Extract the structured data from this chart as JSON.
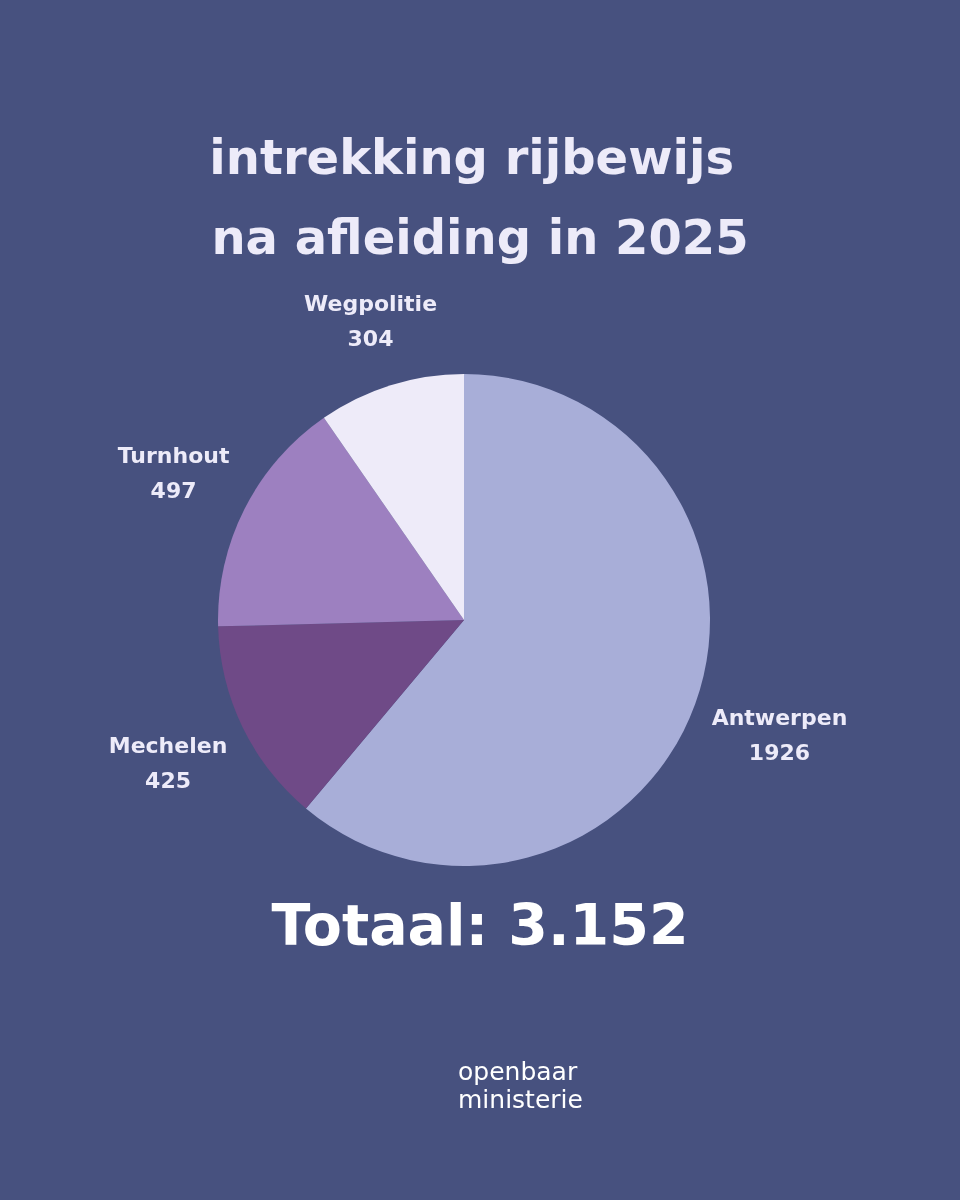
{
  "chart_data": {
    "type": "pie",
    "title": "intrekking rijbewijs na afleiding in 2025",
    "categories": [
      "Antwerpen",
      "Mechelen",
      "Turnhout",
      "Wegpolitie"
    ],
    "values": [
      1926,
      425,
      497,
      304
    ],
    "colors": [
      "#a8aed8",
      "#6f4a87",
      "#9d80c0",
      "#eeebf9"
    ],
    "data_labels": true,
    "legend": false,
    "annotations": [
      "Totaal: 3.152",
      "openbaar ministerie"
    ]
  }
}
